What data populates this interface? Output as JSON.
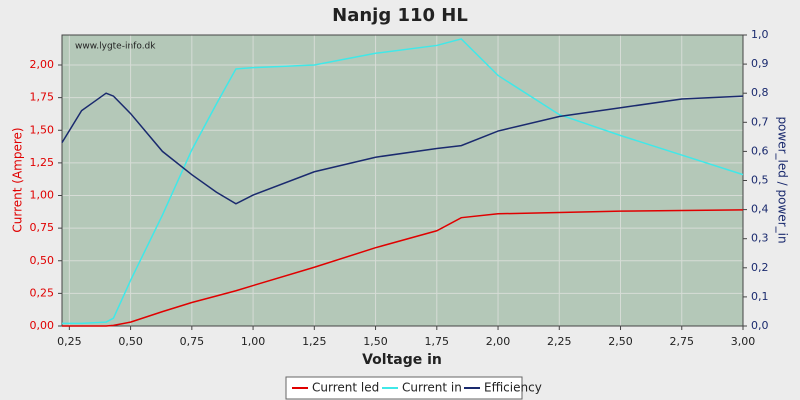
{
  "chart_data": {
    "type": "line",
    "title": "Nanjg 110 HL",
    "watermark": "www.lygte-info.dk",
    "xlabel": "Voltage in",
    "ylabel": "Current (Ampere)",
    "y2label": "power_led / power_in",
    "x": [
      0.22,
      0.3,
      0.35,
      0.4,
      0.43,
      0.5,
      0.63,
      0.75,
      0.85,
      0.93,
      1.0,
      1.25,
      1.5,
      1.75,
      1.85,
      2.0,
      2.25,
      2.5,
      2.75,
      3.0
    ],
    "series": [
      {
        "name": "Current led",
        "color": "#e00000",
        "values": [
          0,
          0,
          0,
          0,
          0.005,
          0.03,
          0.11,
          0.18,
          0.23,
          0.27,
          0.31,
          0.45,
          0.6,
          0.73,
          0.83,
          0.86,
          0.87,
          0.88,
          0.885,
          0.89
        ]
      },
      {
        "name": "Current in",
        "color": "#40e8e8",
        "values": [
          0.02,
          0.02,
          0.025,
          0.03,
          0.06,
          0.35,
          0.85,
          1.35,
          1.7,
          1.97,
          1.98,
          2.0,
          2.09,
          2.15,
          2.2,
          1.92,
          1.62,
          1.46,
          1.31,
          1.16
        ]
      },
      {
        "name": "Efficiency",
        "color": "#1a2a6e",
        "axis": "y2",
        "values": [
          0.63,
          0.74,
          0.77,
          0.8,
          0.79,
          0.73,
          0.6,
          0.52,
          0.46,
          0.42,
          0.45,
          0.53,
          0.58,
          0.61,
          0.62,
          0.67,
          0.72,
          0.75,
          0.78,
          0.79
        ]
      }
    ],
    "xlim": [
      0.22,
      3.0
    ],
    "xticks": [
      {
        "value": 0.25,
        "label": "0,25"
      },
      {
        "value": 0.5,
        "label": "0,50"
      },
      {
        "value": 0.75,
        "label": "0,75"
      },
      {
        "value": 1.0,
        "label": "1,00"
      },
      {
        "value": 1.25,
        "label": "1,25"
      },
      {
        "value": 1.5,
        "label": "1,50"
      },
      {
        "value": 1.75,
        "label": "1,75"
      },
      {
        "value": 2.0,
        "label": "2,00"
      },
      {
        "value": 2.25,
        "label": "2,25"
      },
      {
        "value": 2.5,
        "label": "2,50"
      },
      {
        "value": 2.75,
        "label": "2,75"
      },
      {
        "value": 3.0,
        "label": "3,00"
      }
    ],
    "ylim": [
      0,
      2.23
    ],
    "yticks": [
      {
        "value": 0,
        "label": "0,00"
      },
      {
        "value": 0.25,
        "label": "0,25"
      },
      {
        "value": 0.5,
        "label": "0,50"
      },
      {
        "value": 0.75,
        "label": "0,75"
      },
      {
        "value": 1.0,
        "label": "1,00"
      },
      {
        "value": 1.25,
        "label": "1,25"
      },
      {
        "value": 1.5,
        "label": "1,50"
      },
      {
        "value": 1.75,
        "label": "1,75"
      },
      {
        "value": 2.0,
        "label": "2,00"
      }
    ],
    "y2lim": [
      0,
      1
    ],
    "y2ticks": [
      {
        "value": 0,
        "label": "0,0"
      },
      {
        "value": 0.1,
        "label": "0,1"
      },
      {
        "value": 0.2,
        "label": "0,2"
      },
      {
        "value": 0.3,
        "label": "0,3"
      },
      {
        "value": 0.4,
        "label": "0,4"
      },
      {
        "value": 0.5,
        "label": "0,5"
      },
      {
        "value": 0.6,
        "label": "0,6"
      },
      {
        "value": 0.7,
        "label": "0,7"
      },
      {
        "value": 0.8,
        "label": "0,8"
      },
      {
        "value": 0.9,
        "label": "0,9"
      },
      {
        "value": 1.0,
        "label": "1,0"
      }
    ],
    "grid": true,
    "legend": "bottom"
  }
}
